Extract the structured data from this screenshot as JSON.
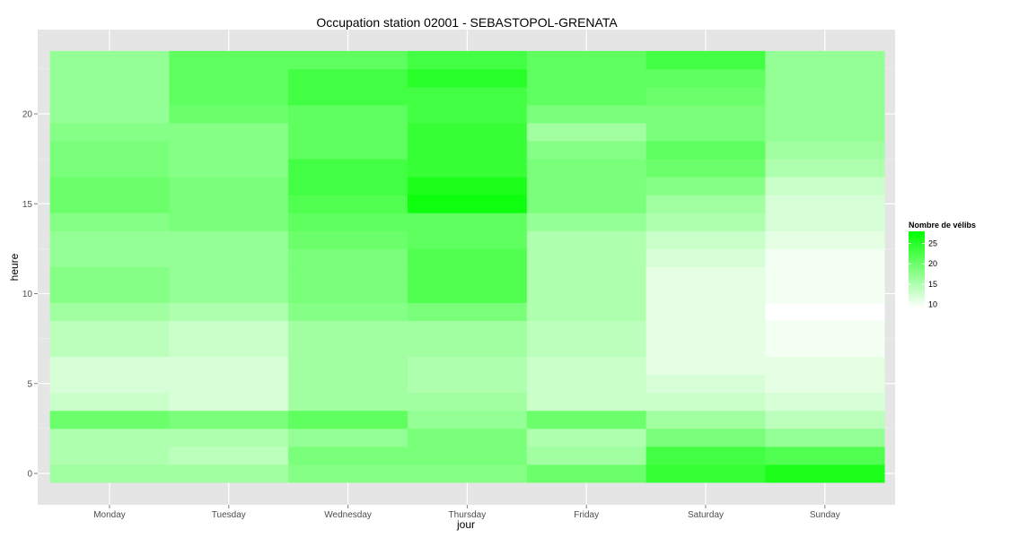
{
  "chart_data": {
    "type": "heatmap",
    "title": "Occupation station 02001 - SEBASTOPOL-GRENATA",
    "xlabel": "jour",
    "ylabel": "heure",
    "x": [
      "Monday",
      "Tuesday",
      "Wednesday",
      "Thursday",
      "Friday",
      "Saturday",
      "Sunday"
    ],
    "y": [
      0,
      1,
      2,
      3,
      4,
      5,
      6,
      7,
      8,
      9,
      10,
      11,
      12,
      13,
      14,
      15,
      16,
      17,
      18,
      19,
      20,
      21,
      22,
      23
    ],
    "y_ticks": [
      0,
      5,
      10,
      15,
      20
    ],
    "ylim": [
      -0.5,
      23.5
    ],
    "grid": true,
    "color_low": "#ffffff",
    "color_high": "#00ff00",
    "colorbar": {
      "title": "Nombre de vélibs",
      "ticks": [
        10,
        15,
        20,
        25
      ],
      "range": [
        9,
        28
      ],
      "placement": "right"
    },
    "values": [
      [
        16,
        16,
        18,
        18,
        20,
        24,
        26
      ],
      [
        15,
        14,
        19,
        19,
        16,
        23,
        22
      ],
      [
        15,
        15,
        17,
        19,
        15,
        19,
        17
      ],
      [
        20,
        19,
        21,
        17,
        20,
        16,
        14
      ],
      [
        13,
        12,
        16,
        16,
        13,
        13,
        12
      ],
      [
        12,
        12,
        16,
        15,
        13,
        12,
        11
      ],
      [
        12,
        12,
        16,
        15,
        13,
        11,
        11
      ],
      [
        14,
        13,
        16,
        16,
        14,
        11,
        10
      ],
      [
        14,
        13,
        16,
        16,
        14,
        11,
        10
      ],
      [
        16,
        15,
        18,
        19,
        15,
        11,
        9
      ],
      [
        18,
        17,
        19,
        22,
        15,
        11,
        10
      ],
      [
        18,
        17,
        19,
        22,
        15,
        11,
        10
      ],
      [
        17,
        17,
        19,
        22,
        15,
        12,
        10
      ],
      [
        17,
        17,
        20,
        21,
        15,
        13,
        11
      ],
      [
        18,
        19,
        21,
        21,
        17,
        15,
        12
      ],
      [
        20,
        19,
        22,
        27,
        19,
        16,
        12
      ],
      [
        20,
        19,
        23,
        26,
        19,
        18,
        13
      ],
      [
        19,
        18,
        23,
        24,
        19,
        20,
        15
      ],
      [
        19,
        18,
        21,
        24,
        18,
        21,
        16
      ],
      [
        18,
        18,
        21,
        24,
        16,
        19,
        17
      ],
      [
        17,
        20,
        21,
        23,
        19,
        19,
        17
      ],
      [
        17,
        21,
        23,
        23,
        21,
        20,
        17
      ],
      [
        17,
        21,
        23,
        25,
        21,
        21,
        17
      ],
      [
        17,
        21,
        21,
        23,
        21,
        23,
        17
      ]
    ]
  }
}
